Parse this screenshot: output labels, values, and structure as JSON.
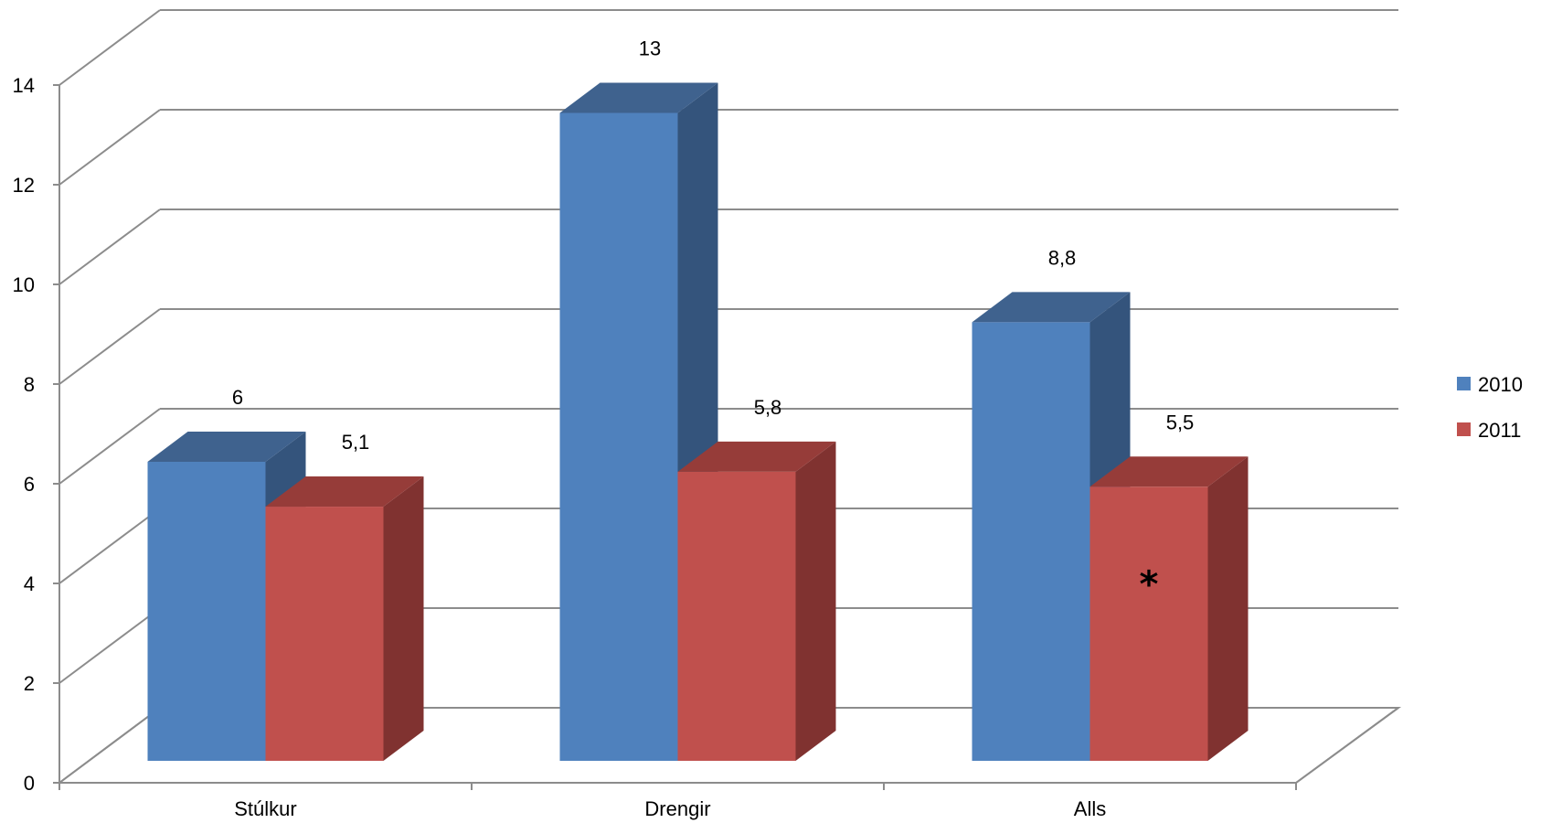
{
  "chart_data": {
    "type": "bar",
    "style": "3d-clustered-column",
    "categories": [
      "Stúlkur",
      "Drengir",
      "Alls"
    ],
    "series": [
      {
        "name": "2010",
        "values": [
          6,
          13,
          8.8
        ],
        "labels": [
          "6",
          "13",
          "8,8"
        ],
        "color": "#4F81BD",
        "top_color": "#3F628E",
        "side_color": "#34547C"
      },
      {
        "name": "2011",
        "values": [
          5.1,
          5.8,
          5.5
        ],
        "labels": [
          "5,1",
          "5,8",
          "5,5"
        ],
        "color": "#C0504D",
        "top_color": "#963C39",
        "side_color": "#803230"
      }
    ],
    "y_ticks": [
      "0",
      "2",
      "4",
      "6",
      "8",
      "10",
      "12",
      "14"
    ],
    "ylim": [
      0,
      14
    ],
    "grid": true,
    "legend_position": "right",
    "annotations": [
      {
        "category": "Alls",
        "series": "2011",
        "text": "*"
      }
    ],
    "title": "",
    "xlabel": "",
    "ylabel": ""
  }
}
